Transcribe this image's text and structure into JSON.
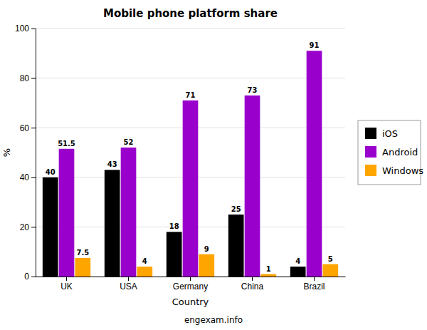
{
  "chart_data": {
    "type": "bar",
    "title": "Mobile phone platform share",
    "xlabel": "Country",
    "ylabel": "%",
    "annotations": [
      "engexam.info"
    ],
    "categories": [
      "UK",
      "USA",
      "Germany",
      "China",
      "Brazil"
    ],
    "series": [
      {
        "name": "iOS",
        "color": "#000000",
        "values": [
          40,
          43,
          18,
          25,
          4
        ]
      },
      {
        "name": "Android",
        "color": "#9900cc",
        "values": [
          51.5,
          52,
          71,
          73,
          91
        ]
      },
      {
        "name": "Windows",
        "color": "#ffa500",
        "values": [
          7.5,
          4,
          9,
          1,
          5
        ]
      }
    ],
    "ylim": [
      0,
      100
    ],
    "yticks": [
      0,
      20,
      40,
      60,
      80,
      100
    ],
    "grid": true,
    "legend": "right",
    "data_labels": true
  }
}
